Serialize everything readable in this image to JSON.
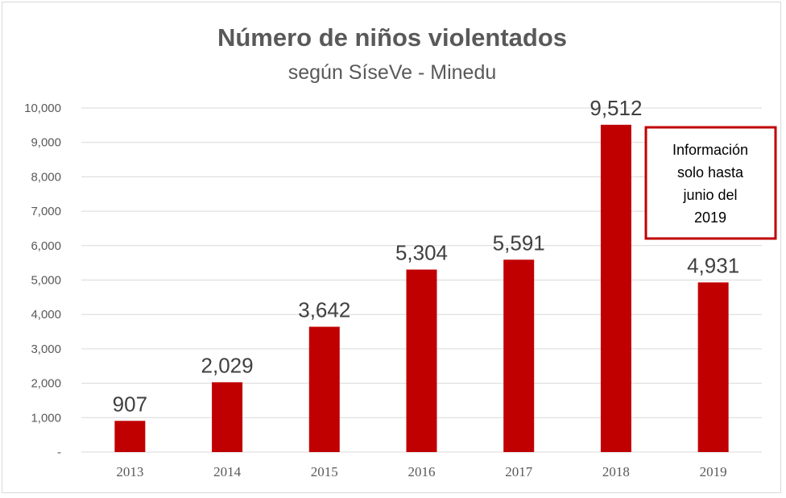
{
  "chart_data": {
    "type": "bar",
    "title": "Número de niños violentados",
    "subtitle": "según SíseVe - Minedu",
    "categories": [
      "2013",
      "2014",
      "2015",
      "2016",
      "2017",
      "2018",
      "2019"
    ],
    "values": [
      907,
      2029,
      3642,
      5304,
      5591,
      9512,
      4931
    ],
    "data_labels": [
      "907",
      "2,029",
      "3,642",
      "5,304",
      "5,591",
      "9,512",
      "4,931"
    ],
    "ylim": [
      0,
      10000
    ],
    "yticks": [
      0,
      1000,
      2000,
      3000,
      4000,
      5000,
      6000,
      7000,
      8000,
      9000,
      10000
    ],
    "ytick_labels": [
      "-",
      "1,000",
      "2,000",
      "3,000",
      "4,000",
      "5,000",
      "6,000",
      "7,000",
      "8,000",
      "9,000",
      "10,000"
    ],
    "grid": true,
    "bar_color": "#c00000",
    "annotation": {
      "lines": [
        "Información",
        "solo hasta",
        "junio del",
        "2019"
      ],
      "border_color": "#c00000"
    }
  }
}
